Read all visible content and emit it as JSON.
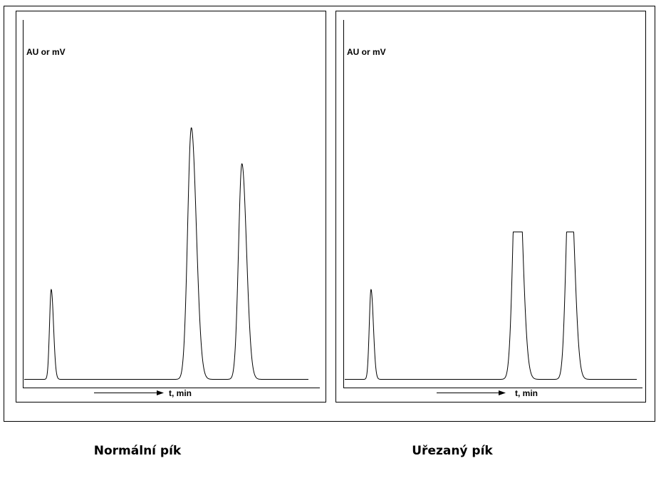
{
  "chart_data": [
    {
      "type": "line",
      "caption": "Normální pík",
      "ylabel": "AU or mV",
      "xlabel": "t, min",
      "xlim": [
        0,
        100
      ],
      "ylim": [
        0,
        100
      ],
      "clip_level": null,
      "peaks": [
        {
          "center": 9.5,
          "height": 25,
          "width": 0.6
        },
        {
          "center": 58.8,
          "height": 70,
          "width": 1.3
        },
        {
          "center": 76.6,
          "height": 60,
          "width": 1.2
        }
      ]
    },
    {
      "type": "line",
      "caption": "Uřezaný pík",
      "ylabel": "AU or mV",
      "xlabel": "t, min",
      "xlim": [
        0,
        100
      ],
      "ylim": [
        0,
        100
      ],
      "clip_level": 41,
      "peaks": [
        {
          "center": 9.0,
          "height": 25,
          "width": 0.6
        },
        {
          "center": 59.0,
          "height": 70,
          "width": 1.3
        },
        {
          "center": 77.0,
          "height": 60,
          "width": 1.2
        }
      ]
    }
  ]
}
